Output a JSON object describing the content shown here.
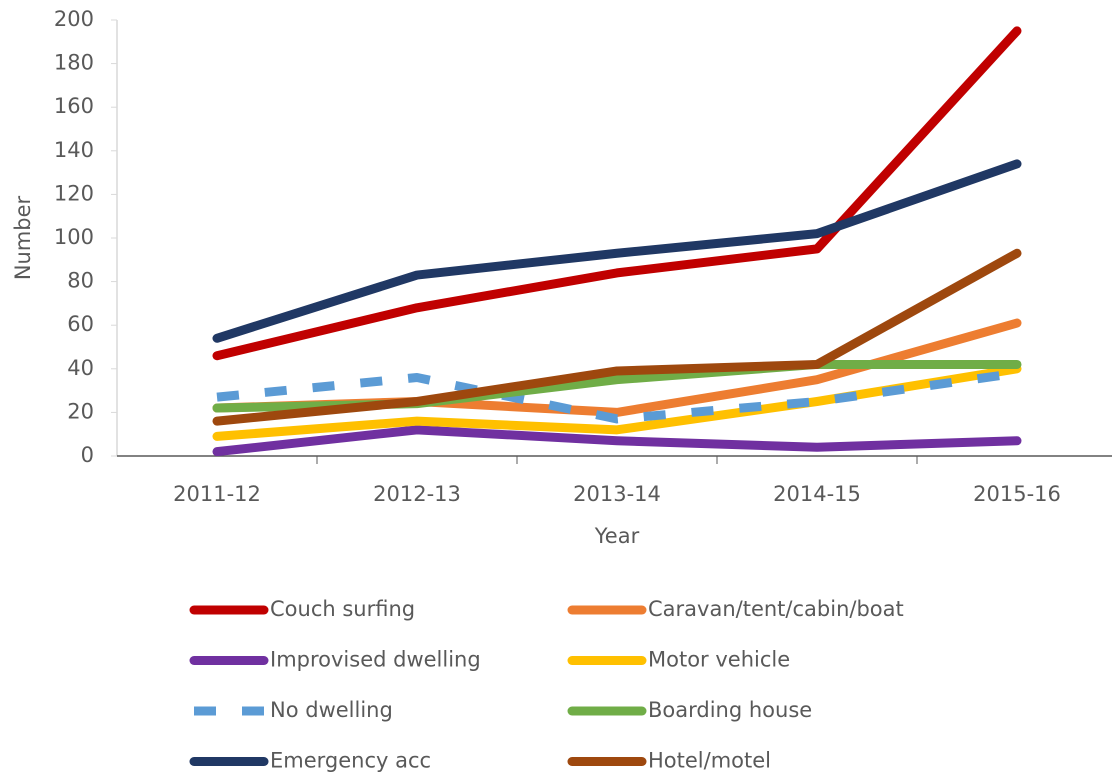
{
  "chart_data": {
    "type": "line",
    "x_label": "Year",
    "y_label": "Number",
    "categories": [
      "2011-12",
      "2012-13",
      "2013-14",
      "2014-15",
      "2015-16"
    ],
    "series": [
      {
        "name": "Couch surfing",
        "color": "#c00000",
        "values": [
          46,
          68,
          84,
          95,
          195
        ]
      },
      {
        "name": "Caravan/tent/cabin/boat",
        "color": "#ed7d31",
        "values": [
          22,
          25,
          20,
          35,
          61
        ]
      },
      {
        "name": "Improvised dwelling",
        "color": "#7030a0",
        "values": [
          2,
          12,
          7,
          4,
          7
        ]
      },
      {
        "name": "Motor vehicle",
        "color": "#ffc000",
        "values": [
          9,
          16,
          12,
          25,
          40
        ]
      },
      {
        "name": "No dwelling",
        "color": "#5b9bd5",
        "dashed": true,
        "values": [
          27,
          36,
          17,
          25,
          38
        ]
      },
      {
        "name": "Boarding house",
        "color": "#70ad47",
        "values": [
          22,
          24,
          35,
          42,
          42
        ]
      },
      {
        "name": "Emergency acc",
        "color": "#203864",
        "values": [
          54,
          83,
          93,
          102,
          134
        ]
      },
      {
        "name": "Hotel/motel",
        "color": "#9e480e",
        "values": [
          16,
          25,
          39,
          42,
          93
        ]
      }
    ],
    "ylim": [
      0,
      200
    ],
    "yticks": [
      0,
      20,
      40,
      60,
      80,
      100,
      120,
      140,
      160,
      180,
      200
    ],
    "grid": false
  }
}
